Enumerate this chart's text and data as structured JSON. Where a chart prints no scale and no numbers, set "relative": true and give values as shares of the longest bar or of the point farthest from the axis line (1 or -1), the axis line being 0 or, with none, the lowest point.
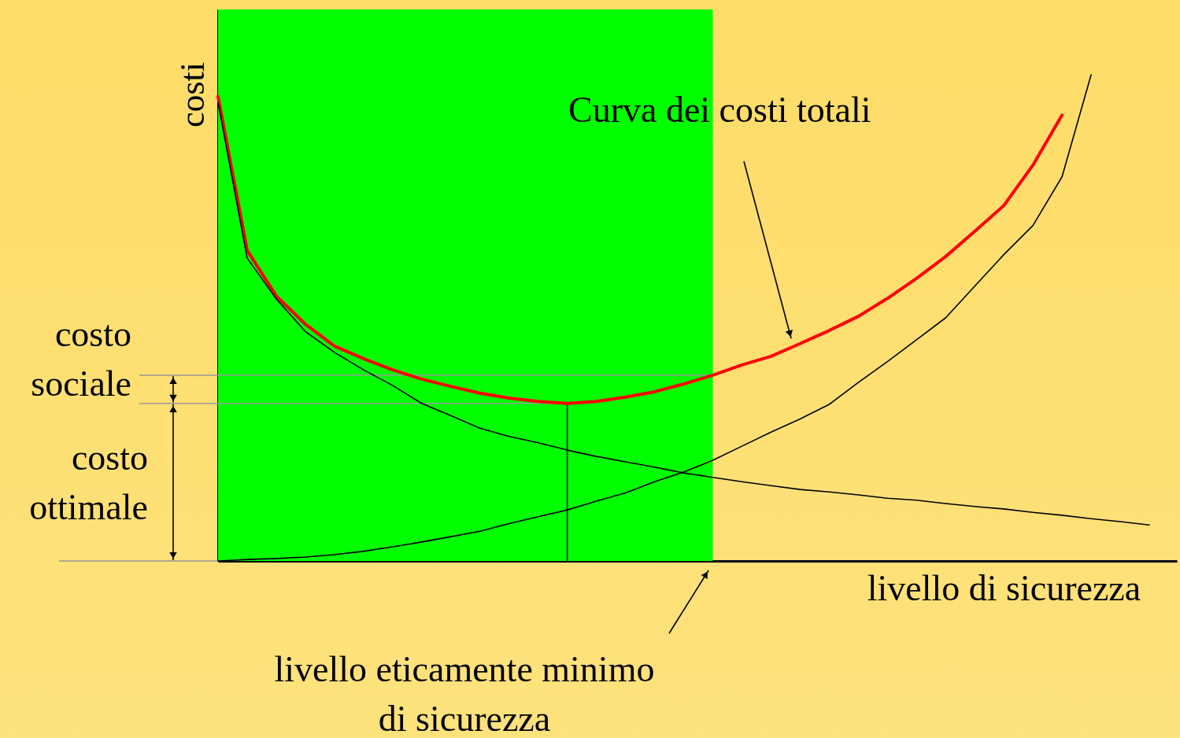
{
  "chart_data": {
    "type": "line",
    "relative": true,
    "xlabel": "livello di sicurezza",
    "ylabel": "costi",
    "categories": [
      null,
      null,
      null,
      null,
      null,
      null,
      null,
      null,
      null,
      null,
      null,
      null,
      null,
      null,
      null,
      null,
      null,
      null,
      null,
      null,
      null,
      null,
      null,
      null,
      null,
      null,
      null,
      null,
      null,
      null,
      null,
      null,
      null
    ],
    "series": [
      {
        "color": "#ff0000",
        "values": [
          0.955,
          0.639,
          0.545,
          0.487,
          0.442,
          0.416,
          0.393,
          0.374,
          0.359,
          0.345,
          0.335,
          0.328,
          0.324,
          0.328,
          0.337,
          0.348,
          0.364,
          0.382,
          0.403,
          0.421,
          0.447,
          0.474,
          0.503,
          0.54,
          0.581,
          0.626,
          0.678,
          0.731,
          0.814,
          0.917,
          null,
          null,
          null
        ]
      },
      {
        "color": "#000000",
        "values": [
          0.943,
          0.623,
          0.539,
          0.472,
          0.429,
          0.393,
          0.361,
          0.324,
          0.299,
          0.273,
          0.256,
          0.243,
          0.228,
          0.215,
          0.204,
          0.193,
          0.181,
          0.172,
          0.163,
          0.155,
          0.147,
          0.142,
          0.136,
          0.129,
          0.125,
          0.118,
          0.112,
          0.107,
          0.1,
          0.094,
          0.087,
          0.081,
          0.074
        ]
      },
      {
        "color": "#000000",
        "values": [
          0,
          0.003,
          0.005,
          0.008,
          0.013,
          0.02,
          0.029,
          0.039,
          0.05,
          0.061,
          0.077,
          0.091,
          0.105,
          0.123,
          0.14,
          0.163,
          0.183,
          0.207,
          0.236,
          0.265,
          0.292,
          0.322,
          0.367,
          0.41,
          0.455,
          0.5,
          0.565,
          0.63,
          0.69,
          0.79,
          1,
          null,
          null
        ]
      }
    ],
    "ref_lines": [
      {
        "axis": "y",
        "value": 0.382,
        "color": "#999999"
      },
      {
        "axis": "y",
        "value": 0.324,
        "color": "#999999"
      }
    ],
    "annotations": [
      "costo sociale",
      "costo ottimale",
      "Curva dei costi totali",
      "livello eticamente minimo di sicurezza"
    ]
  }
}
